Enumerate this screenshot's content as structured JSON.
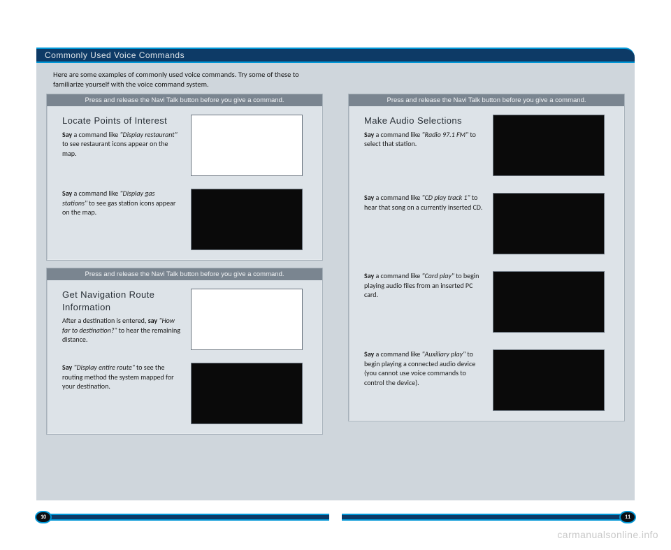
{
  "header": {
    "title": "Commonly Used Voice Commands"
  },
  "intro": "Here are some examples of commonly used voice commands. Try some of these to familiarize yourself with the voice command system.",
  "cards": {
    "poi": {
      "header": "Press and release the Navi Talk button before you give a command.",
      "title": "Locate Points of Interest",
      "rows": [
        {
          "pre": "Say",
          "quote": "\"Display restaurant\"",
          "post": " a command like ",
          "tail": " to see restaurant icons appear on the map.",
          "screen": "white"
        },
        {
          "pre": "Say",
          "quote": "\"Display gas stations\"",
          "post": " a command like ",
          "tail": " to see gas station icons appear on the map.",
          "screen": "black"
        }
      ]
    },
    "nav": {
      "header": "Press and release the Navi Talk button before you give a command.",
      "title": "Get Navigation Route Information",
      "rows": [
        {
          "pre_plain": "After a destination is entered, ",
          "pre": "say",
          "quote": "\"How far to destination?\"",
          "tail": " to hear the remaining distance.",
          "screen": "white"
        },
        {
          "pre": "Say",
          "quote": "\"Display entire route\"",
          "tail": " to see the routing method the system mapped for your destination.",
          "screen": "black"
        }
      ]
    },
    "audio": {
      "header": "Press and release the Navi Talk button before you give a command.",
      "title": "Make Audio Selections",
      "rows": [
        {
          "pre": "Say",
          "post": " a command like ",
          "quote": "\"Radio 97.1 FM\"",
          "tail": " to select that station.",
          "screen": "black"
        },
        {
          "pre": "Say",
          "post": " a command like ",
          "quote": "\"CD play track 1\"",
          "tail": " to hear that song on a currently inserted CD.",
          "screen": "black"
        },
        {
          "pre": "Say",
          "post": " a command like ",
          "quote": "\"Card play\"",
          "tail": " to begin playing audio files from an inserted PC card.",
          "screen": "black"
        },
        {
          "pre": "Say",
          "post": " a command like ",
          "quote": "\"Auxiliary play\"",
          "tail": " to begin playing a connected audio device (you cannot use voice commands to control the device).",
          "screen": "black"
        }
      ]
    }
  },
  "footer": {
    "left_page": "10",
    "right_page": "11"
  },
  "watermark": "carmanualsonline.info",
  "colors": {
    "page_bg": "#cfd6dc",
    "card_bg": "#dde3e8",
    "card_header_bg": "#7a8590",
    "header_bg": "#0d3a66",
    "accent": "#0096d6"
  }
}
